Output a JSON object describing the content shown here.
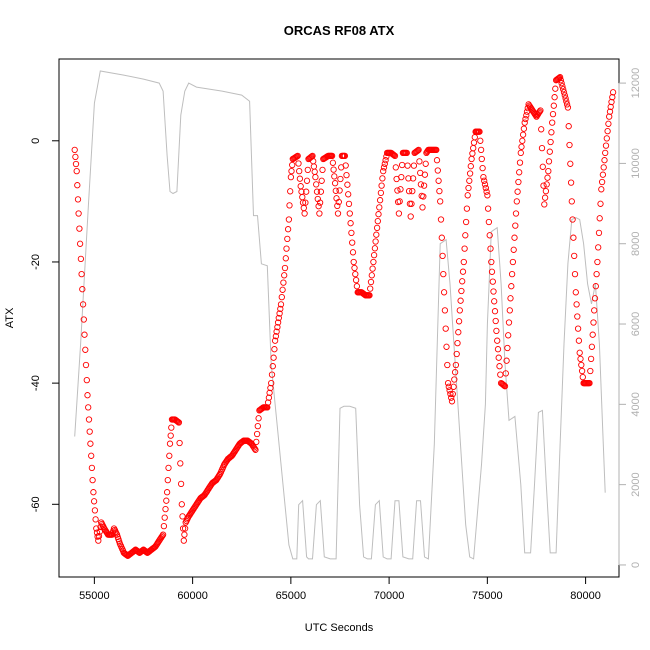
{
  "chart_data": {
    "type": "line",
    "title": "ORCAS RF08 ATX",
    "xlabel": "UTC Seconds",
    "ylabel": "ATX",
    "xlim": [
      53200,
      81700
    ],
    "ylim": [
      -72,
      13.5
    ],
    "y2lim": [
      -300,
      12600
    ],
    "x_ticks": [
      55000,
      60000,
      65000,
      70000,
      75000,
      80000
    ],
    "x_tick_labels": [
      "55000",
      "60000",
      "65000",
      "70000",
      "75000",
      "80000"
    ],
    "y_ticks": [
      0,
      -20,
      -40,
      -60
    ],
    "y_tick_labels": [
      "0",
      "-20",
      "-40",
      "-60"
    ],
    "y2_ticks": [
      0,
      2000,
      4000,
      6000,
      8000,
      10000,
      12000
    ],
    "y2_tick_labels": [
      "0",
      "2000",
      "4000",
      "6000",
      "8000",
      "10000",
      "12000"
    ],
    "grid": false,
    "colors": {
      "atx": "#ff0000",
      "altitude": "#bebebe",
      "axis": "#000000",
      "axis_right": "#b0b0b0"
    },
    "series": [
      {
        "marker": "open-circle",
        "axis": "left",
        "points": [
          [
            54000,
            -1.5
          ],
          [
            54100,
            -5
          ],
          [
            54200,
            -12
          ],
          [
            54350,
            -22
          ],
          [
            54500,
            -32
          ],
          [
            54650,
            -42
          ],
          [
            54800,
            -50
          ],
          [
            54950,
            -58
          ],
          [
            55100,
            -64
          ],
          [
            55200,
            -66
          ],
          [
            55350,
            -63
          ],
          [
            55500,
            -64
          ],
          [
            55700,
            -65
          ],
          [
            55900,
            -65
          ],
          [
            56000,
            -64
          ],
          [
            56150,
            -65
          ],
          [
            56300,
            -66.5
          ],
          [
            56500,
            -68
          ],
          [
            56700,
            -68.5
          ],
          [
            56900,
            -68
          ],
          [
            57100,
            -67.5
          ],
          [
            57300,
            -68
          ],
          [
            57500,
            -67.5
          ],
          [
            57700,
            -68
          ],
          [
            57900,
            -67.5
          ],
          [
            58100,
            -67
          ],
          [
            58300,
            -66
          ],
          [
            58500,
            -65
          ],
          [
            58700,
            -58
          ],
          [
            58850,
            -50
          ],
          [
            58950,
            -46
          ],
          [
            59100,
            -46
          ],
          [
            59300,
            -46.5
          ],
          [
            59450,
            -60
          ],
          [
            59550,
            -66
          ],
          [
            59650,
            -63
          ],
          [
            59800,
            -62
          ],
          [
            60000,
            -61
          ],
          [
            60200,
            -60
          ],
          [
            60400,
            -59
          ],
          [
            60600,
            -58.5
          ],
          [
            60800,
            -57.5
          ],
          [
            61000,
            -56.5
          ],
          [
            61200,
            -56
          ],
          [
            61400,
            -55
          ],
          [
            61600,
            -53.5
          ],
          [
            61800,
            -52.5
          ],
          [
            62000,
            -52
          ],
          [
            62200,
            -51
          ],
          [
            62400,
            -50
          ],
          [
            62600,
            -49.5
          ],
          [
            62800,
            -49.5
          ],
          [
            63000,
            -50
          ],
          [
            63200,
            -51
          ],
          [
            63400,
            -44.5
          ],
          [
            63600,
            -44
          ],
          [
            63800,
            -44
          ],
          [
            64000,
            -40
          ],
          [
            64200,
            -33
          ],
          [
            64500,
            -27
          ],
          [
            64700,
            -21
          ],
          [
            64900,
            -13
          ],
          [
            65000,
            -6
          ],
          [
            65100,
            -3
          ],
          [
            65350,
            -2.5
          ],
          [
            65500,
            -7.5
          ],
          [
            65700,
            -12
          ],
          [
            65900,
            -3
          ],
          [
            66100,
            -2.5
          ],
          [
            66250,
            -6
          ],
          [
            66450,
            -12
          ],
          [
            66650,
            -3
          ],
          [
            66900,
            -2.5
          ],
          [
            67100,
            -2.5
          ],
          [
            67250,
            -7
          ],
          [
            67400,
            -12
          ],
          [
            67600,
            -2.5
          ],
          [
            67750,
            -2.5
          ],
          [
            68000,
            -12
          ],
          [
            68200,
            -20
          ],
          [
            68400,
            -25
          ],
          [
            68600,
            -25
          ],
          [
            68800,
            -25.5
          ],
          [
            69000,
            -25.5
          ],
          [
            69200,
            -20
          ],
          [
            69500,
            -11
          ],
          [
            69700,
            -5
          ],
          [
            69900,
            -2
          ],
          [
            70100,
            -2
          ],
          [
            70300,
            -2.5
          ],
          [
            70500,
            -12
          ],
          [
            70700,
            -2
          ],
          [
            70900,
            -2
          ],
          [
            71100,
            -12.5
          ],
          [
            71300,
            -2
          ],
          [
            71500,
            -1.5
          ],
          [
            71700,
            -11
          ],
          [
            71900,
            -2
          ],
          [
            72000,
            -1.5
          ],
          [
            72200,
            -1.5
          ],
          [
            72400,
            -1.5
          ],
          [
            72600,
            -10
          ],
          [
            72800,
            -25
          ],
          [
            73000,
            -40
          ],
          [
            73200,
            -43
          ],
          [
            73400,
            -37
          ],
          [
            73600,
            -28
          ],
          [
            73800,
            -20
          ],
          [
            74000,
            -9
          ],
          [
            74200,
            -3
          ],
          [
            74400,
            1.5
          ],
          [
            74600,
            1.5
          ],
          [
            74800,
            -6
          ],
          [
            75000,
            -9
          ],
          [
            75200,
            -20
          ],
          [
            75500,
            -33
          ],
          [
            75700,
            -40
          ],
          [
            75900,
            -40.5
          ],
          [
            76100,
            -30
          ],
          [
            76300,
            -20
          ],
          [
            76500,
            -10
          ],
          [
            76700,
            -2
          ],
          [
            76900,
            3
          ],
          [
            77100,
            6
          ],
          [
            77300,
            5
          ],
          [
            77500,
            4
          ],
          [
            77700,
            5
          ],
          [
            77900,
            -10.5
          ],
          [
            78100,
            -5
          ],
          [
            78300,
            3
          ],
          [
            78500,
            10
          ],
          [
            78700,
            10.5
          ],
          [
            78900,
            8
          ],
          [
            79100,
            5.5
          ],
          [
            79300,
            -10
          ],
          [
            79500,
            -25
          ],
          [
            79700,
            -35
          ],
          [
            79900,
            -40
          ],
          [
            80000,
            -40
          ],
          [
            80200,
            -40
          ],
          [
            80400,
            -30
          ],
          [
            80600,
            -20
          ],
          [
            80800,
            -8
          ],
          [
            81000,
            -2
          ],
          [
            81200,
            4
          ],
          [
            81400,
            8
          ]
        ]
      },
      {
        "marker": "line",
        "axis": "right",
        "points": [
          [
            54000,
            3200
          ],
          [
            54300,
            5500
          ],
          [
            54700,
            9000
          ],
          [
            55000,
            11500
          ],
          [
            55300,
            12300
          ],
          [
            56500,
            12200
          ],
          [
            57500,
            12100
          ],
          [
            58300,
            12000
          ],
          [
            58500,
            11800
          ],
          [
            58700,
            10200
          ],
          [
            58850,
            9300
          ],
          [
            59000,
            9250
          ],
          [
            59200,
            9300
          ],
          [
            59400,
            11200
          ],
          [
            59600,
            11800
          ],
          [
            59800,
            12000
          ],
          [
            60200,
            11900
          ],
          [
            61500,
            11800
          ],
          [
            62500,
            11700
          ],
          [
            62900,
            11550
          ],
          [
            63100,
            8700
          ],
          [
            63300,
            8700
          ],
          [
            63500,
            7500
          ],
          [
            63800,
            7450
          ],
          [
            64000,
            5000
          ],
          [
            64300,
            3500
          ],
          [
            64600,
            2000
          ],
          [
            64900,
            500
          ],
          [
            65100,
            150
          ],
          [
            65300,
            150
          ],
          [
            65400,
            1500
          ],
          [
            65600,
            1600
          ],
          [
            65800,
            200
          ],
          [
            65900,
            150
          ],
          [
            66100,
            150
          ],
          [
            66300,
            1500
          ],
          [
            66500,
            1600
          ],
          [
            66700,
            200
          ],
          [
            67000,
            150
          ],
          [
            67300,
            150
          ],
          [
            67500,
            3900
          ],
          [
            67700,
            3950
          ],
          [
            68000,
            3950
          ],
          [
            68300,
            3900
          ],
          [
            68500,
            1500
          ],
          [
            68700,
            200
          ],
          [
            68900,
            150
          ],
          [
            69100,
            150
          ],
          [
            69300,
            1500
          ],
          [
            69500,
            1600
          ],
          [
            69700,
            200
          ],
          [
            69900,
            150
          ],
          [
            70100,
            150
          ],
          [
            70300,
            1600
          ],
          [
            70500,
            1600
          ],
          [
            70700,
            200
          ],
          [
            71000,
            150
          ],
          [
            71200,
            150
          ],
          [
            71400,
            1600
          ],
          [
            71600,
            1600
          ],
          [
            71800,
            200
          ],
          [
            72000,
            150
          ],
          [
            72300,
            3000
          ],
          [
            72600,
            8000
          ],
          [
            72900,
            8100
          ],
          [
            73100,
            7000
          ],
          [
            73300,
            5500
          ],
          [
            73500,
            4000
          ],
          [
            73700,
            2500
          ],
          [
            73900,
            1000
          ],
          [
            74100,
            200
          ],
          [
            74300,
            150
          ],
          [
            74700,
            2500
          ],
          [
            74900,
            4000
          ],
          [
            75000,
            6000
          ],
          [
            75200,
            8300
          ],
          [
            75500,
            8400
          ],
          [
            75700,
            7000
          ],
          [
            75900,
            5000
          ],
          [
            76100,
            3600
          ],
          [
            76400,
            3700
          ],
          [
            76700,
            2000
          ],
          [
            76900,
            300
          ],
          [
            77200,
            300
          ],
          [
            77400,
            2000
          ],
          [
            77600,
            3800
          ],
          [
            77800,
            3850
          ],
          [
            78000,
            2000
          ],
          [
            78200,
            300
          ],
          [
            78500,
            300
          ],
          [
            78700,
            3000
          ],
          [
            78900,
            5500
          ],
          [
            79100,
            7500
          ],
          [
            79300,
            8600
          ],
          [
            79500,
            8650
          ],
          [
            79700,
            8600
          ],
          [
            79900,
            8000
          ],
          [
            80100,
            7000
          ],
          [
            80300,
            6500
          ],
          [
            80500,
            7000
          ],
          [
            80700,
            5500
          ],
          [
            80900,
            3000
          ],
          [
            81000,
            1800
          ]
        ]
      }
    ]
  }
}
